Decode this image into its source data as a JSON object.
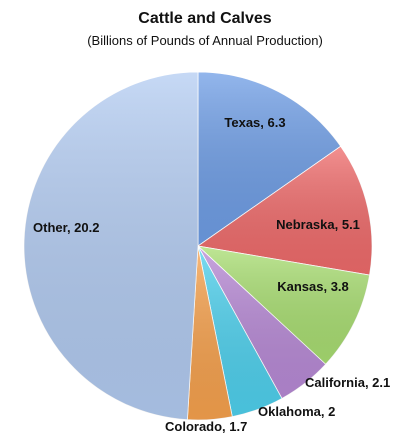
{
  "chart_data": {
    "type": "pie",
    "title": "Cattle and Calves",
    "subtitle": "(Billions of Pounds of Annual Production)",
    "slices": [
      {
        "label": "Texas",
        "value": 6.3,
        "display": "Texas, 6.3",
        "color": "#6f9ee6"
      },
      {
        "label": "Nebraska",
        "value": 5.1,
        "display": "Nebraska, 5.1",
        "color": "#ef6b6b"
      },
      {
        "label": "Kansas",
        "value": 3.8,
        "display": "Kansas, 3.8",
        "color": "#a9de72"
      },
      {
        "label": "California",
        "value": 2.1,
        "display": "California, 2.1",
        "color": "#b88ad6"
      },
      {
        "label": "Oklahoma",
        "value": 2,
        "display": "Oklahoma, 2",
        "color": "#4fd1ee"
      },
      {
        "label": "Colorado",
        "value": 1.7,
        "display": "Colorado, 1.7",
        "color": "#f7a24e"
      },
      {
        "label": "Other",
        "value": 20.2,
        "display": "Other, 20.2",
        "color": "#b3ccf2"
      }
    ]
  }
}
